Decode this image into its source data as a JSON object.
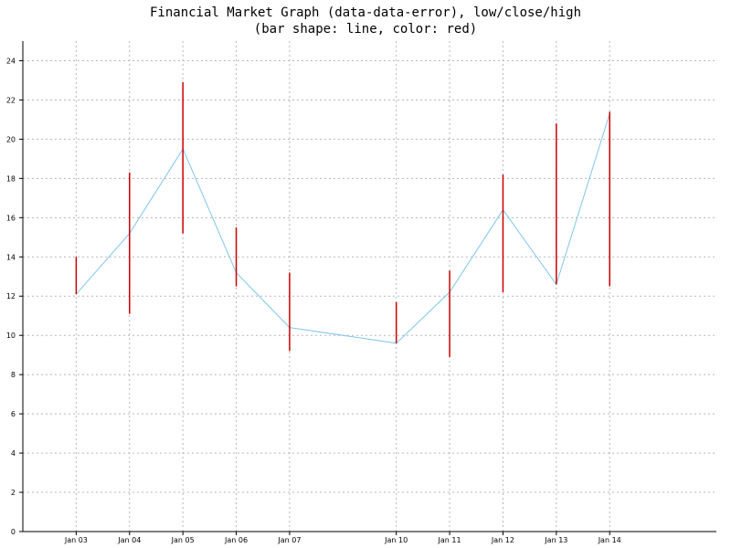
{
  "chart_data": {
    "type": "line",
    "title": "Financial Market Graph (data-data-error), low/close/high",
    "subtitle": "(bar shape: line, color: red)",
    "xlabel": "",
    "ylabel": "",
    "categories": [
      "Jan 03",
      "Jan 04",
      "Jan 05",
      "Jan 06",
      "Jan 07",
      "Jan 10",
      "Jan 11",
      "Jan 12",
      "Jan 13",
      "Jan 14"
    ],
    "x_index": [
      0,
      1,
      2,
      3,
      4,
      6,
      7,
      8,
      9,
      10
    ],
    "xlim": [
      -1,
      12
    ],
    "ylim": [
      0,
      25
    ],
    "yticks": [
      0,
      2,
      4,
      6,
      8,
      10,
      12,
      14,
      16,
      18,
      20,
      22,
      24
    ],
    "grid": true,
    "series": [
      {
        "low": [
          12.1,
          11.1,
          15.2,
          12.5,
          9.2,
          9.6,
          8.9,
          12.2,
          12.6,
          12.5
        ],
        "close": [
          12.1,
          15.2,
          19.5,
          13.2,
          10.4,
          9.6,
          12.2,
          16.4,
          12.6,
          21.3
        ],
        "high": [
          14.0,
          18.3,
          22.9,
          15.5,
          13.2,
          11.7,
          13.3,
          18.2,
          20.8,
          21.4
        ]
      }
    ],
    "colors": {
      "close_line": "#7fc6ec",
      "bars": "#cc0000",
      "grid": "#b8b8b8",
      "axes": "#000000"
    }
  }
}
